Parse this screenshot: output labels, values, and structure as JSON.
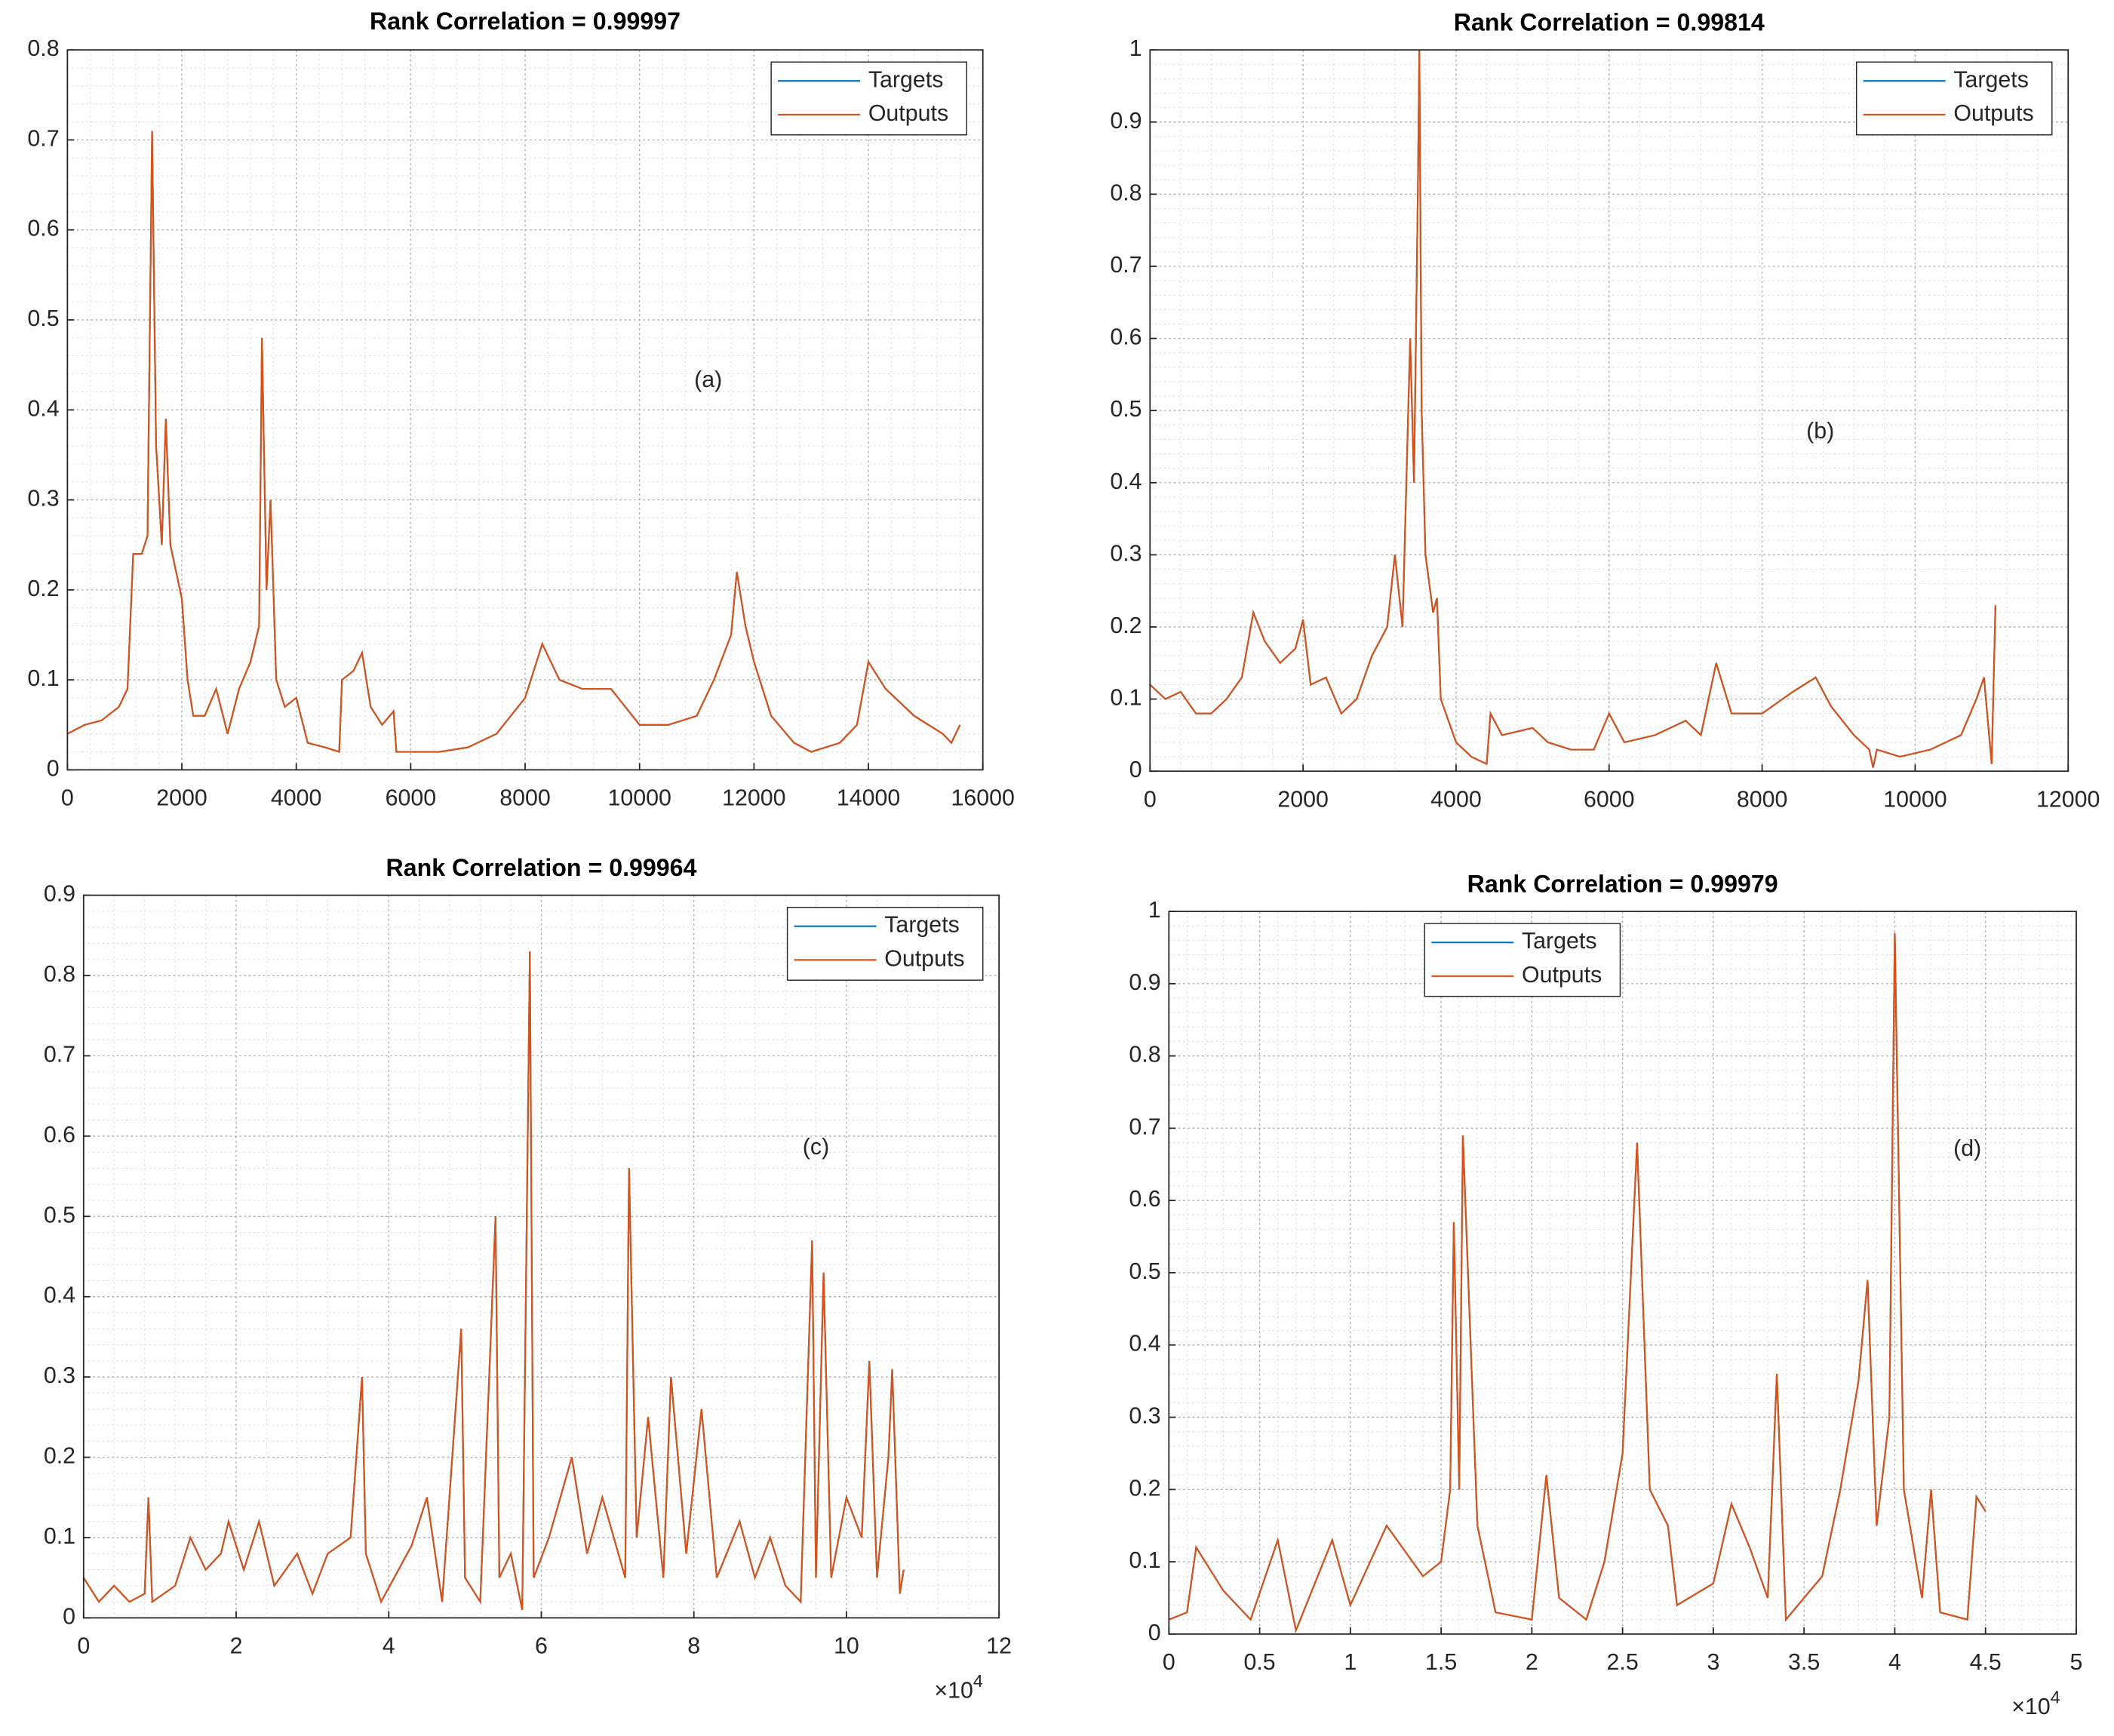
{
  "chart_data": [
    {
      "type": "line",
      "title": "Rank Correlation = 0.99997",
      "annotation": "(a)",
      "x": [
        0,
        300,
        600,
        900,
        1050,
        1150,
        1300,
        1400,
        1480,
        1550,
        1650,
        1720,
        1800,
        1900,
        2000,
        2100,
        2200,
        2400,
        2600,
        2800,
        3000,
        3200,
        3350,
        3400,
        3480,
        3550,
        3650,
        3800,
        4000,
        4200,
        4500,
        4750,
        4800,
        5000,
        5150,
        5300,
        5500,
        5700,
        5750,
        6000,
        6500,
        7000,
        7500,
        8000,
        8300,
        8600,
        9000,
        9500,
        10000,
        10500,
        11000,
        11300,
        11600,
        11700,
        11850,
        12000,
        12300,
        12700,
        13000,
        13500,
        13800,
        14000,
        14300,
        14800,
        15300,
        15450,
        15600
      ],
      "series": [
        {
          "name": "Targets",
          "color": "#0072bd",
          "values": [
            0.04,
            0.05,
            0.055,
            0.07,
            0.09,
            0.24,
            0.24,
            0.26,
            0.71,
            0.36,
            0.25,
            0.39,
            0.25,
            0.22,
            0.19,
            0.1,
            0.06,
            0.06,
            0.09,
            0.04,
            0.09,
            0.12,
            0.16,
            0.48,
            0.2,
            0.3,
            0.1,
            0.07,
            0.08,
            0.03,
            0.025,
            0.02,
            0.1,
            0.11,
            0.13,
            0.07,
            0.05,
            0.065,
            0.02,
            0.02,
            0.02,
            0.025,
            0.04,
            0.08,
            0.14,
            0.1,
            0.09,
            0.09,
            0.05,
            0.05,
            0.06,
            0.1,
            0.15,
            0.22,
            0.16,
            0.12,
            0.06,
            0.03,
            0.02,
            0.03,
            0.05,
            0.12,
            0.09,
            0.06,
            0.04,
            0.03,
            0.05
          ]
        },
        {
          "name": "Outputs",
          "color": "#d95319",
          "values": [
            0.04,
            0.05,
            0.055,
            0.07,
            0.09,
            0.24,
            0.24,
            0.26,
            0.71,
            0.36,
            0.25,
            0.39,
            0.25,
            0.22,
            0.19,
            0.1,
            0.06,
            0.06,
            0.09,
            0.04,
            0.09,
            0.12,
            0.16,
            0.48,
            0.2,
            0.3,
            0.1,
            0.07,
            0.08,
            0.03,
            0.025,
            0.02,
            0.1,
            0.11,
            0.13,
            0.07,
            0.05,
            0.065,
            0.02,
            0.02,
            0.02,
            0.025,
            0.04,
            0.08,
            0.14,
            0.1,
            0.09,
            0.09,
            0.05,
            0.05,
            0.06,
            0.1,
            0.15,
            0.22,
            0.16,
            0.12,
            0.06,
            0.03,
            0.02,
            0.03,
            0.05,
            0.12,
            0.09,
            0.06,
            0.04,
            0.03,
            0.05
          ]
        }
      ],
      "xlim": [
        0,
        16000
      ],
      "xticks": [
        0,
        2000,
        4000,
        6000,
        8000,
        10000,
        12000,
        14000,
        16000
      ],
      "ylim": [
        0,
        0.8
      ],
      "yticks": [
        0,
        0.1,
        0.2,
        0.3,
        0.4,
        0.5,
        0.6,
        0.7,
        0.8
      ],
      "grid": true,
      "legend_position": "northeast"
    },
    {
      "type": "line",
      "title": "Rank Correlation = 0.99814",
      "annotation": "(b)",
      "x": [
        0,
        200,
        400,
        600,
        800,
        1000,
        1200,
        1350,
        1500,
        1700,
        1900,
        2000,
        2100,
        2300,
        2500,
        2700,
        2900,
        3100,
        3200,
        3300,
        3400,
        3450,
        3500,
        3520,
        3550,
        3600,
        3700,
        3750,
        3800,
        4000,
        4200,
        4400,
        4450,
        4600,
        5000,
        5200,
        5500,
        5800,
        6000,
        6200,
        6600,
        7000,
        7200,
        7400,
        7600,
        8000,
        8400,
        8700,
        8900,
        9200,
        9400,
        9450,
        9500,
        9800,
        10200,
        10400,
        10600,
        10800,
        10900,
        11000,
        11050
      ],
      "series": [
        {
          "name": "Targets",
          "color": "#0072bd",
          "values": [
            0.12,
            0.1,
            0.11,
            0.08,
            0.08,
            0.1,
            0.13,
            0.22,
            0.18,
            0.15,
            0.17,
            0.21,
            0.12,
            0.13,
            0.08,
            0.1,
            0.16,
            0.2,
            0.3,
            0.2,
            0.6,
            0.4,
            0.8,
            1.0,
            0.5,
            0.3,
            0.22,
            0.24,
            0.1,
            0.04,
            0.02,
            0.01,
            0.08,
            0.05,
            0.06,
            0.04,
            0.03,
            0.03,
            0.08,
            0.04,
            0.05,
            0.07,
            0.05,
            0.15,
            0.08,
            0.08,
            0.11,
            0.13,
            0.09,
            0.05,
            0.03,
            0.005,
            0.03,
            0.02,
            0.03,
            0.04,
            0.05,
            0.1,
            0.13,
            0.01,
            0.23
          ]
        },
        {
          "name": "Outputs",
          "color": "#d95319",
          "values": [
            0.12,
            0.1,
            0.11,
            0.08,
            0.08,
            0.1,
            0.13,
            0.22,
            0.18,
            0.15,
            0.17,
            0.21,
            0.12,
            0.13,
            0.08,
            0.1,
            0.16,
            0.2,
            0.3,
            0.2,
            0.6,
            0.4,
            0.8,
            1.0,
            0.5,
            0.3,
            0.22,
            0.24,
            0.1,
            0.04,
            0.02,
            0.01,
            0.08,
            0.05,
            0.06,
            0.04,
            0.03,
            0.03,
            0.08,
            0.04,
            0.05,
            0.07,
            0.05,
            0.15,
            0.08,
            0.08,
            0.11,
            0.13,
            0.09,
            0.05,
            0.03,
            0.005,
            0.03,
            0.02,
            0.03,
            0.04,
            0.05,
            0.1,
            0.13,
            0.01,
            0.23
          ]
        }
      ],
      "xlim": [
        0,
        12000
      ],
      "xticks": [
        0,
        2000,
        4000,
        6000,
        8000,
        10000,
        12000
      ],
      "ylim": [
        0,
        1
      ],
      "yticks": [
        0,
        0.1,
        0.2,
        0.3,
        0.4,
        0.5,
        0.6,
        0.7,
        0.8,
        0.9,
        1
      ],
      "grid": true,
      "legend_position": "northeast"
    },
    {
      "type": "line",
      "title": "Rank Correlation = 0.99964",
      "annotation": "(c)",
      "x_multiplier": {
        "base": "×10",
        "exponent": "4"
      },
      "x": [
        0,
        0.2,
        0.4,
        0.6,
        0.8,
        0.85,
        0.9,
        1.2,
        1.4,
        1.6,
        1.8,
        1.9,
        2.1,
        2.3,
        2.5,
        2.8,
        3.0,
        3.2,
        3.5,
        3.65,
        3.7,
        3.9,
        4.3,
        4.5,
        4.7,
        4.95,
        5.0,
        5.2,
        5.4,
        5.45,
        5.6,
        5.75,
        5.85,
        5.9,
        6.1,
        6.4,
        6.6,
        6.8,
        7.1,
        7.15,
        7.25,
        7.4,
        7.6,
        7.7,
        7.9,
        8.1,
        8.3,
        8.6,
        8.8,
        9.0,
        9.2,
        9.4,
        9.55,
        9.6,
        9.7,
        9.8,
        10.0,
        10.2,
        10.3,
        10.4,
        10.55,
        10.6,
        10.7,
        10.75
      ],
      "series": [
        {
          "name": "Targets",
          "color": "#0072bd",
          "values": [
            0.05,
            0.02,
            0.04,
            0.02,
            0.03,
            0.15,
            0.02,
            0.04,
            0.1,
            0.06,
            0.08,
            0.12,
            0.06,
            0.12,
            0.04,
            0.08,
            0.03,
            0.08,
            0.1,
            0.3,
            0.08,
            0.02,
            0.09,
            0.15,
            0.02,
            0.36,
            0.05,
            0.02,
            0.5,
            0.05,
            0.08,
            0.01,
            0.83,
            0.05,
            0.1,
            0.2,
            0.08,
            0.15,
            0.05,
            0.56,
            0.1,
            0.25,
            0.05,
            0.3,
            0.08,
            0.26,
            0.05,
            0.12,
            0.05,
            0.1,
            0.04,
            0.02,
            0.47,
            0.05,
            0.43,
            0.05,
            0.15,
            0.1,
            0.32,
            0.05,
            0.2,
            0.31,
            0.03,
            0.06
          ]
        },
        {
          "name": "Outputs",
          "color": "#d95319",
          "values": [
            0.05,
            0.02,
            0.04,
            0.02,
            0.03,
            0.15,
            0.02,
            0.04,
            0.1,
            0.06,
            0.08,
            0.12,
            0.06,
            0.12,
            0.04,
            0.08,
            0.03,
            0.08,
            0.1,
            0.3,
            0.08,
            0.02,
            0.09,
            0.15,
            0.02,
            0.36,
            0.05,
            0.02,
            0.5,
            0.05,
            0.08,
            0.01,
            0.83,
            0.05,
            0.1,
            0.2,
            0.08,
            0.15,
            0.05,
            0.56,
            0.1,
            0.25,
            0.05,
            0.3,
            0.08,
            0.26,
            0.05,
            0.12,
            0.05,
            0.1,
            0.04,
            0.02,
            0.47,
            0.05,
            0.43,
            0.05,
            0.15,
            0.1,
            0.32,
            0.05,
            0.2,
            0.31,
            0.03,
            0.06
          ]
        }
      ],
      "xlim": [
        0,
        12
      ],
      "xticks": [
        0,
        2,
        4,
        6,
        8,
        10,
        12
      ],
      "ylim": [
        0,
        0.9
      ],
      "yticks": [
        0,
        0.1,
        0.2,
        0.3,
        0.4,
        0.5,
        0.6,
        0.7,
        0.8,
        0.9
      ],
      "grid": true,
      "legend_position": "northeast"
    },
    {
      "type": "line",
      "title": "Rank Correlation = 0.99979",
      "annotation": "(d)",
      "x_multiplier": {
        "base": "×10",
        "exponent": "4"
      },
      "x": [
        0,
        0.1,
        0.15,
        0.3,
        0.45,
        0.6,
        0.7,
        0.9,
        1.0,
        1.2,
        1.4,
        1.5,
        1.55,
        1.57,
        1.6,
        1.62,
        1.7,
        1.8,
        2.0,
        2.08,
        2.15,
        2.3,
        2.4,
        2.5,
        2.58,
        2.65,
        2.75,
        2.8,
        3.0,
        3.1,
        3.2,
        3.3,
        3.35,
        3.4,
        3.6,
        3.7,
        3.8,
        3.85,
        3.9,
        3.97,
        4.0,
        4.05,
        4.15,
        4.2,
        4.25,
        4.4,
        4.45,
        4.5
      ],
      "series": [
        {
          "name": "Targets",
          "color": "#0072bd",
          "values": [
            0.02,
            0.03,
            0.12,
            0.06,
            0.02,
            0.13,
            0.005,
            0.13,
            0.04,
            0.15,
            0.08,
            0.1,
            0.2,
            0.57,
            0.2,
            0.69,
            0.15,
            0.03,
            0.02,
            0.22,
            0.05,
            0.02,
            0.1,
            0.25,
            0.68,
            0.2,
            0.15,
            0.04,
            0.07,
            0.18,
            0.12,
            0.05,
            0.36,
            0.02,
            0.08,
            0.2,
            0.35,
            0.49,
            0.15,
            0.3,
            0.97,
            0.2,
            0.05,
            0.2,
            0.03,
            0.02,
            0.19,
            0.17
          ]
        },
        {
          "name": "Outputs",
          "color": "#d95319",
          "values": [
            0.02,
            0.03,
            0.12,
            0.06,
            0.02,
            0.13,
            0.005,
            0.13,
            0.04,
            0.15,
            0.08,
            0.1,
            0.2,
            0.57,
            0.2,
            0.69,
            0.15,
            0.03,
            0.02,
            0.22,
            0.05,
            0.02,
            0.1,
            0.25,
            0.68,
            0.2,
            0.15,
            0.04,
            0.07,
            0.18,
            0.12,
            0.05,
            0.36,
            0.02,
            0.08,
            0.2,
            0.35,
            0.49,
            0.15,
            0.3,
            0.97,
            0.2,
            0.05,
            0.2,
            0.03,
            0.02,
            0.19,
            0.17
          ]
        }
      ],
      "xlim": [
        0,
        5
      ],
      "xticks": [
        0,
        0.5,
        1,
        1.5,
        2,
        2.5,
        3,
        3.5,
        4,
        4.5,
        5
      ],
      "ylim": [
        0,
        1
      ],
      "yticks": [
        0,
        0.1,
        0.2,
        0.3,
        0.4,
        0.5,
        0.6,
        0.7,
        0.8,
        0.9,
        1
      ],
      "grid": true,
      "legend_position": "northwest"
    }
  ]
}
